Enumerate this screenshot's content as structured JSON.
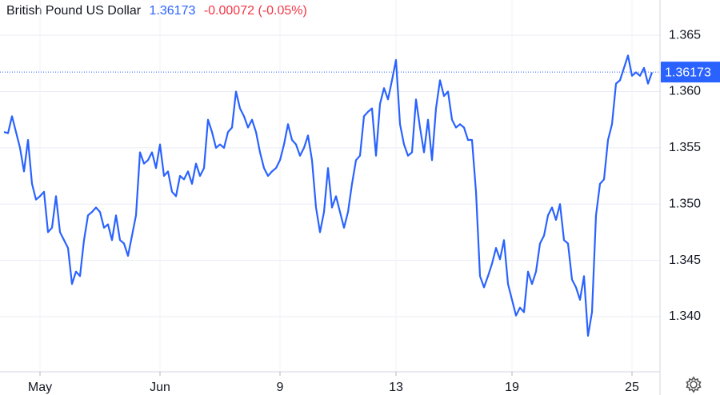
{
  "chart_data": {
    "type": "line",
    "title": "British Pound US Dollar",
    "last_price": 1.36173,
    "change": "-0.00072 (-0.05%)",
    "color": "#2962ff",
    "price_color": "#2962ff",
    "change_color": "#f23645",
    "grid": true,
    "xlim": [
      0,
      162
    ],
    "xticks": [
      {
        "value": 9,
        "label": "May"
      },
      {
        "value": 39,
        "label": "Jun"
      },
      {
        "value": 69,
        "label": "9"
      },
      {
        "value": 98,
        "label": "13"
      },
      {
        "value": 127,
        "label": "19"
      },
      {
        "value": 157,
        "label": "25"
      }
    ],
    "ylim": [
      1.3351,
      1.366
    ],
    "yticks": [
      {
        "value": 1.34,
        "label": "1.340"
      },
      {
        "value": 1.345,
        "label": "1.345"
      },
      {
        "value": 1.35,
        "label": "1.350"
      },
      {
        "value": 1.355,
        "label": "1.355"
      },
      {
        "value": 1.36,
        "label": "1.360"
      },
      {
        "value": 1.365,
        "label": "1.365"
      }
    ],
    "values": [
      1.3564,
      1.3563,
      1.3578,
      1.3564,
      1.355,
      1.3529,
      1.3557,
      1.3518,
      1.3504,
      1.3507,
      1.3511,
      1.3475,
      1.3479,
      1.3507,
      1.3475,
      1.3468,
      1.3461,
      1.3429,
      1.344,
      1.3436,
      1.3468,
      1.349,
      1.3493,
      1.3497,
      1.3493,
      1.3479,
      1.3482,
      1.3468,
      1.349,
      1.3468,
      1.3465,
      1.3454,
      1.3472,
      1.349,
      1.3546,
      1.3536,
      1.3539,
      1.3546,
      1.3532,
      1.3553,
      1.3525,
      1.3529,
      1.3511,
      1.3507,
      1.3525,
      1.3522,
      1.3529,
      1.3518,
      1.3536,
      1.3525,
      1.3532,
      1.3575,
      1.3564,
      1.355,
      1.3553,
      1.355,
      1.3564,
      1.3568,
      1.36,
      1.3585,
      1.3578,
      1.3568,
      1.3575,
      1.3564,
      1.3546,
      1.3532,
      1.3525,
      1.3529,
      1.3532,
      1.3539,
      1.3553,
      1.3571,
      1.3557,
      1.3553,
      1.3543,
      1.355,
      1.3561,
      1.3539,
      1.3497,
      1.3475,
      1.3493,
      1.3532,
      1.3497,
      1.3507,
      1.3493,
      1.3479,
      1.3493,
      1.3518,
      1.3539,
      1.3543,
      1.3578,
      1.3582,
      1.3585,
      1.3543,
      1.3589,
      1.3603,
      1.3593,
      1.361,
      1.3628,
      1.3571,
      1.3553,
      1.3543,
      1.3546,
      1.3593,
      1.3568,
      1.3546,
      1.3575,
      1.3539,
      1.3585,
      1.361,
      1.3596,
      1.36,
      1.3575,
      1.3568,
      1.3571,
      1.3568,
      1.3557,
      1.3557,
      1.3511,
      1.3436,
      1.3426,
      1.3436,
      1.3447,
      1.3461,
      1.3451,
      1.3468,
      1.3429,
      1.3415,
      1.3401,
      1.3408,
      1.3404,
      1.344,
      1.3429,
      1.344,
      1.3465,
      1.3472,
      1.349,
      1.3497,
      1.3486,
      1.35,
      1.3468,
      1.3465,
      1.3433,
      1.3426,
      1.3415,
      1.3436,
      1.3383,
      1.3404,
      1.349,
      1.3518,
      1.3522,
      1.3557,
      1.3571,
      1.3607,
      1.361,
      1.3621,
      1.3632,
      1.3614,
      1.3617,
      1.3614,
      1.3621,
      1.3607,
      1.3617
    ]
  }
}
